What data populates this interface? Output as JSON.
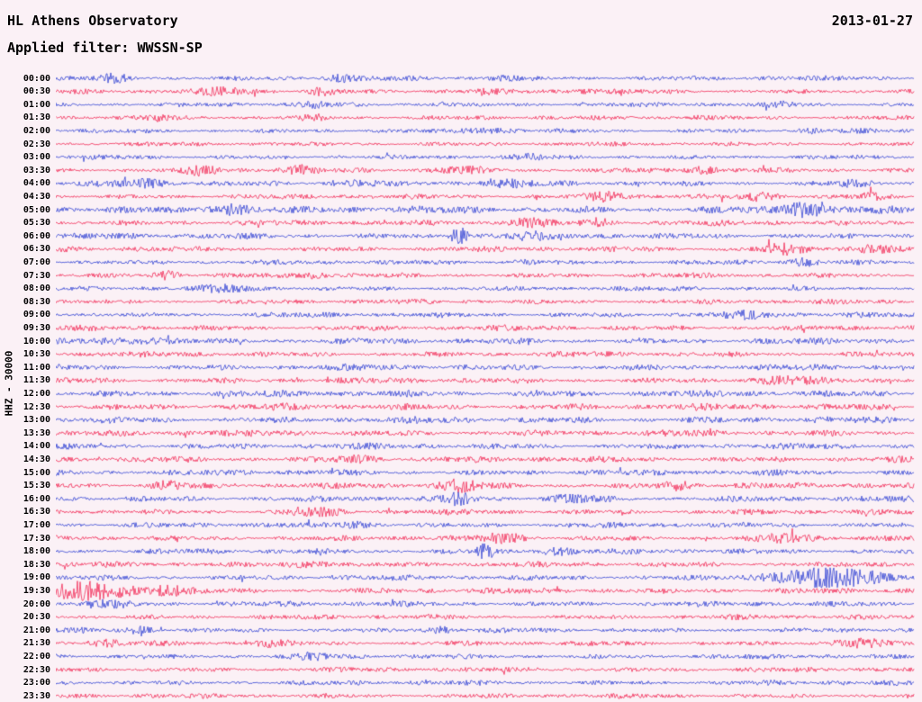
{
  "header": {
    "title": "HL Athens Observatory",
    "date": "2013-01-27",
    "filter_line": "Applied filter: WWSSN-SP"
  },
  "axis": {
    "channel_label": "HHZ - 30000"
  },
  "chart_data": {
    "type": "line",
    "title": "HL Athens Observatory",
    "subtitle": "Applied filter: WWSSN-SP",
    "date": "2013-01-27",
    "ylabel": "HHZ - 30000",
    "xlabel": "",
    "row_interval_minutes": 30,
    "rows_count": 48,
    "legend": "none",
    "grid": false,
    "background": "#fbf1f6",
    "palette": {
      "blue": "#1b2fd0",
      "red": "#f01243"
    },
    "rows": [
      {
        "t": "00:00",
        "c": "blue",
        "a": 1.0,
        "e": [
          [
            0.07,
            0.012,
            1.6
          ],
          [
            0.33,
            0.012,
            1.3
          ],
          [
            0.52,
            0.01,
            1.1
          ]
        ]
      },
      {
        "t": "00:30",
        "c": "red",
        "a": 1.0,
        "e": [
          [
            0.2,
            0.02,
            1.4
          ],
          [
            0.31,
            0.012,
            1.4
          ],
          [
            0.5,
            0.012,
            1.1
          ],
          [
            0.62,
            0.01,
            1.0
          ]
        ]
      },
      {
        "t": "01:00",
        "c": "blue",
        "a": 0.9,
        "e": [
          [
            0.3,
            0.012,
            1.4
          ],
          [
            0.45,
            0.01,
            1.0
          ],
          [
            0.85,
            0.012,
            1.1
          ]
        ]
      },
      {
        "t": "01:30",
        "c": "red",
        "a": 0.9,
        "e": [
          [
            0.12,
            0.012,
            1.2
          ],
          [
            0.3,
            0.012,
            1.4
          ],
          [
            0.75,
            0.01,
            1.0
          ]
        ]
      },
      {
        "t": "02:00",
        "c": "blue",
        "a": 0.9,
        "e": [
          [
            0.5,
            0.02,
            1.1
          ],
          [
            0.88,
            0.01,
            1.0
          ]
        ]
      },
      {
        "t": "02:30",
        "c": "red",
        "a": 0.85,
        "e": []
      },
      {
        "t": "03:00",
        "c": "blue",
        "a": 0.9,
        "e": [
          [
            0.55,
            0.012,
            1.2
          ]
        ]
      },
      {
        "t": "03:30",
        "c": "red",
        "a": 1.0,
        "e": [
          [
            0.17,
            0.015,
            1.9
          ],
          [
            0.28,
            0.015,
            1.7
          ],
          [
            0.47,
            0.02,
            1.4
          ],
          [
            0.75,
            0.015,
            1.4
          ]
        ]
      },
      {
        "t": "04:00",
        "c": "blue",
        "a": 1.1,
        "e": [
          [
            0.1,
            0.02,
            1.4
          ],
          [
            0.35,
            0.02,
            1.2
          ],
          [
            0.52,
            0.02,
            1.2
          ],
          [
            0.93,
            0.012,
            1.2
          ]
        ]
      },
      {
        "t": "04:30",
        "c": "red",
        "a": 1.0,
        "e": [
          [
            0.64,
            0.02,
            2.0
          ],
          [
            0.82,
            0.015,
            1.6
          ],
          [
            0.95,
            0.012,
            1.4
          ]
        ]
      },
      {
        "t": "05:00",
        "c": "blue",
        "a": 1.5,
        "e": [
          [
            0.2,
            0.02,
            1.4
          ],
          [
            0.87,
            0.015,
            2.2
          ]
        ]
      },
      {
        "t": "05:30",
        "c": "red",
        "a": 1.1,
        "e": [
          [
            0.55,
            0.02,
            1.9
          ],
          [
            0.63,
            0.012,
            1.4
          ]
        ]
      },
      {
        "t": "06:00",
        "c": "blue",
        "a": 1.2,
        "e": [
          [
            0.47,
            0.008,
            3.2
          ],
          [
            0.55,
            0.012,
            1.4
          ]
        ]
      },
      {
        "t": "06:30",
        "c": "red",
        "a": 1.1,
        "e": [
          [
            0.85,
            0.02,
            1.8
          ],
          [
            0.95,
            0.015,
            1.6
          ]
        ]
      },
      {
        "t": "07:00",
        "c": "blue",
        "a": 1.0,
        "e": [
          [
            0.55,
            0.01,
            1.1
          ],
          [
            0.87,
            0.012,
            1.4
          ]
        ]
      },
      {
        "t": "07:30",
        "c": "red",
        "a": 1.0,
        "e": [
          [
            0.13,
            0.012,
            1.8
          ],
          [
            0.3,
            0.012,
            1.2
          ]
        ]
      },
      {
        "t": "08:00",
        "c": "blue",
        "a": 1.0,
        "e": [
          [
            0.2,
            0.02,
            1.1
          ]
        ]
      },
      {
        "t": "08:30",
        "c": "red",
        "a": 1.0,
        "e": []
      },
      {
        "t": "09:00",
        "c": "blue",
        "a": 1.1,
        "e": [
          [
            0.8,
            0.02,
            1.2
          ]
        ]
      },
      {
        "t": "09:30",
        "c": "red",
        "a": 1.1,
        "e": []
      },
      {
        "t": "10:00",
        "c": "blue",
        "a": 1.2,
        "e": [
          [
            0.1,
            0.03,
            1.1
          ]
        ]
      },
      {
        "t": "10:30",
        "c": "red",
        "a": 1.1,
        "e": []
      },
      {
        "t": "11:00",
        "c": "blue",
        "a": 1.2,
        "e": []
      },
      {
        "t": "11:30",
        "c": "red",
        "a": 1.2,
        "e": [
          [
            0.85,
            0.02,
            1.2
          ]
        ]
      },
      {
        "t": "12:00",
        "c": "blue",
        "a": 1.35,
        "e": []
      },
      {
        "t": "12:30",
        "c": "red",
        "a": 1.35,
        "e": []
      },
      {
        "t": "13:00",
        "c": "blue",
        "a": 1.35,
        "e": []
      },
      {
        "t": "13:30",
        "c": "red",
        "a": 1.3,
        "e": []
      },
      {
        "t": "14:00",
        "c": "blue",
        "a": 1.2,
        "e": []
      },
      {
        "t": "14:30",
        "c": "red",
        "a": 1.2,
        "e": [
          [
            0.35,
            0.02,
            1.2
          ]
        ]
      },
      {
        "t": "15:00",
        "c": "blue",
        "a": 1.2,
        "e": []
      },
      {
        "t": "15:30",
        "c": "red",
        "a": 1.2,
        "e": [
          [
            0.13,
            0.012,
            1.6
          ],
          [
            0.47,
            0.015,
            1.9
          ],
          [
            0.72,
            0.015,
            1.7
          ]
        ]
      },
      {
        "t": "16:00",
        "c": "blue",
        "a": 1.2,
        "e": [
          [
            0.47,
            0.008,
            2.3
          ],
          [
            0.6,
            0.02,
            1.2
          ]
        ]
      },
      {
        "t": "16:30",
        "c": "red",
        "a": 1.1,
        "e": [
          [
            0.3,
            0.02,
            1.2
          ]
        ]
      },
      {
        "t": "17:00",
        "c": "blue",
        "a": 1.1,
        "e": [
          [
            0.35,
            0.012,
            1.4
          ]
        ]
      },
      {
        "t": "17:30",
        "c": "red",
        "a": 1.1,
        "e": [
          [
            0.52,
            0.015,
            1.9
          ],
          [
            0.85,
            0.02,
            1.4
          ]
        ]
      },
      {
        "t": "18:00",
        "c": "blue",
        "a": 1.1,
        "e": [
          [
            0.5,
            0.008,
            2.8
          ],
          [
            0.58,
            0.015,
            1.4
          ]
        ]
      },
      {
        "t": "18:30",
        "c": "red",
        "a": 1.1,
        "e": [
          [
            0.3,
            0.02,
            1.2
          ]
        ]
      },
      {
        "t": "19:00",
        "c": "blue",
        "a": 1.1,
        "e": [
          [
            0.9,
            0.05,
            3.4
          ]
        ]
      },
      {
        "t": "19:30",
        "c": "red",
        "a": 1.2,
        "e": [
          [
            0.04,
            0.035,
            2.8
          ],
          [
            0.13,
            0.02,
            1.8
          ]
        ]
      },
      {
        "t": "20:00",
        "c": "blue",
        "a": 1.1,
        "e": [
          [
            0.06,
            0.02,
            1.3
          ]
        ]
      },
      {
        "t": "20:30",
        "c": "red",
        "a": 1.0,
        "e": []
      },
      {
        "t": "21:00",
        "c": "blue",
        "a": 1.0,
        "e": [
          [
            0.1,
            0.012,
            1.4
          ],
          [
            0.45,
            0.012,
            1.2
          ]
        ]
      },
      {
        "t": "21:30",
        "c": "red",
        "a": 1.0,
        "e": [
          [
            0.06,
            0.012,
            1.4
          ],
          [
            0.25,
            0.015,
            1.9
          ],
          [
            0.93,
            0.02,
            2.0
          ]
        ]
      },
      {
        "t": "22:00",
        "c": "blue",
        "a": 1.0,
        "e": [
          [
            0.3,
            0.012,
            1.2
          ]
        ]
      },
      {
        "t": "22:30",
        "c": "red",
        "a": 1.0,
        "e": []
      },
      {
        "t": "23:00",
        "c": "blue",
        "a": 1.0,
        "e": []
      },
      {
        "t": "23:30",
        "c": "red",
        "a": 0.95,
        "e": []
      }
    ]
  }
}
